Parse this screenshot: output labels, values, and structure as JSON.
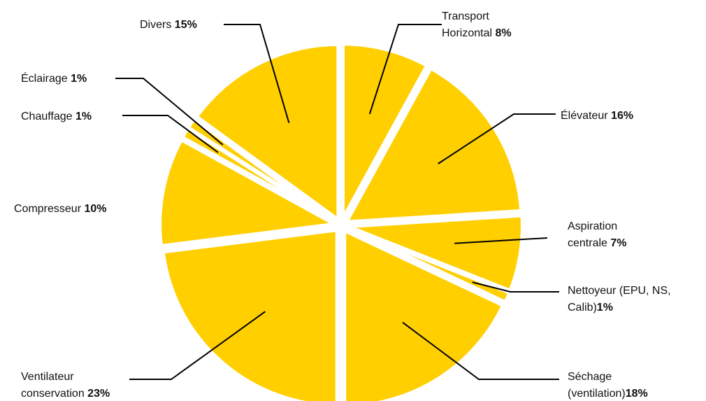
{
  "chart_data": {
    "type": "pie",
    "title": "",
    "color": "#FFCF00",
    "unit": "%",
    "slices": [
      {
        "lines": [
          "Transport",
          "Horizontal"
        ],
        "value": 8
      },
      {
        "lines": [
          "Élévateur"
        ],
        "value": 16
      },
      {
        "lines": [
          "Aspiration",
          "centrale"
        ],
        "value": 7
      },
      {
        "lines": [
          "Nettoyeur (EPU, NS,",
          "Calib)"
        ],
        "value": 1
      },
      {
        "lines": [
          "Séchage",
          "(ventilation)"
        ],
        "value": 18
      },
      {
        "lines": [
          "Ventilateur",
          "conservation"
        ],
        "value": 23
      },
      {
        "lines": [
          "Compresseur"
        ],
        "value": 10
      },
      {
        "lines": [
          "Chauffage"
        ],
        "value": 1
      },
      {
        "lines": [
          "Éclairage"
        ],
        "value": 1
      },
      {
        "lines": [
          "Divers"
        ],
        "value": 15
      }
    ]
  }
}
